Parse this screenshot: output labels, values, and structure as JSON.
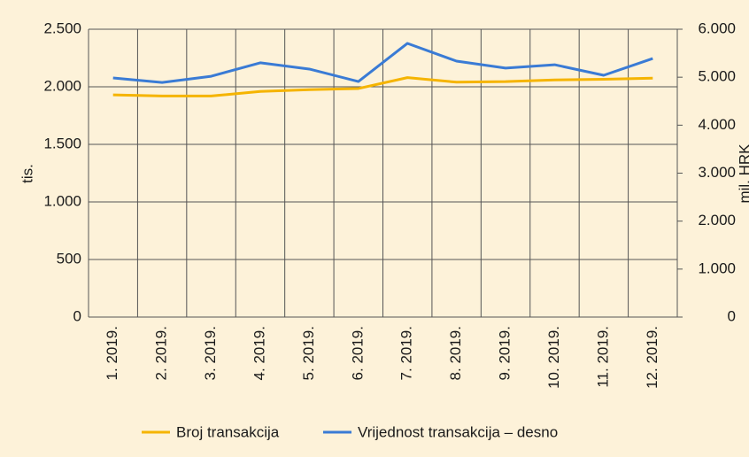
{
  "chart_data": {
    "type": "line",
    "categories": [
      "1. 2019.",
      "2. 2019.",
      "3. 2019.",
      "4. 2019.",
      "5. 2019.",
      "6. 2019.",
      "7. 2019.",
      "8. 2019.",
      "9. 2019.",
      "10. 2019.",
      "11. 2019.",
      "12. 2019."
    ],
    "series": [
      {
        "name": "Broj transakcija",
        "color": "#f5b400",
        "values": [
          1930,
          1920,
          1920,
          1960,
          1975,
          1985,
          2080,
          2040,
          2045,
          2060,
          2065,
          2075
        ]
      },
      {
        "name": "Vrijednost transakcija – desno",
        "color": "#3a7bd5",
        "axis": "y2",
        "values": [
          4985,
          4890,
          5020,
          5300,
          5170,
          4910,
          5705,
          5335,
          5190,
          5260,
          5040,
          5390
        ]
      }
    ],
    "ylabel": "tis.",
    "y2label": "mil. HRK",
    "ylim": [
      0,
      2500
    ],
    "yticks": [
      0,
      500,
      {
        "value": 1000,
        "label": "1.000"
      },
      {
        "value": 1500,
        "label": "1.500"
      },
      {
        "value": 2000,
        "label": "2.000"
      },
      {
        "value": 2500,
        "label": "2.500"
      }
    ],
    "y2lim": [
      0,
      6000
    ],
    "y2ticks": [
      0,
      {
        "value": 1000,
        "label": "1.000"
      },
      {
        "value": 2000,
        "label": "2.000"
      },
      {
        "value": 3000,
        "label": "3.000"
      },
      {
        "value": 4000,
        "label": "4.000"
      },
      {
        "value": 5000,
        "label": "5.000"
      },
      {
        "value": 6000,
        "label": "6.000"
      }
    ],
    "grid": true,
    "legend": "bottom"
  }
}
